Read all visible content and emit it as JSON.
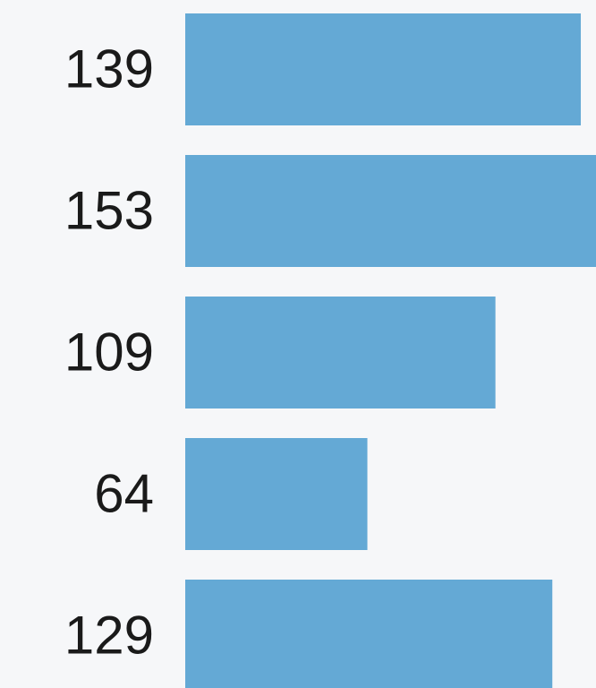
{
  "chart_data": {
    "type": "bar",
    "orientation": "horizontal",
    "values": [
      139,
      153,
      109,
      64,
      129
    ],
    "color": "#64a9d5"
  }
}
